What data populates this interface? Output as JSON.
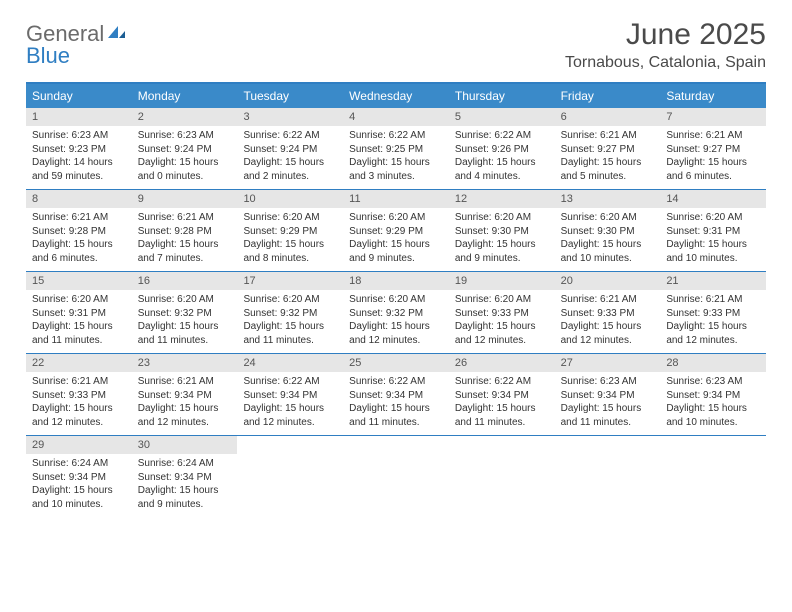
{
  "logo": {
    "general": "General",
    "blue": "Blue"
  },
  "title": "June 2025",
  "location": "Tornabous, Catalonia, Spain",
  "colors": {
    "header_bar": "#3a8ac9",
    "rule": "#2f7ec2",
    "daynum_bg": "#e6e6e6",
    "text_grey": "#4a4a4a",
    "body_text": "#333333",
    "logo_grey": "#6b6b6b",
    "logo_blue": "#2f7ec2"
  },
  "day_names": [
    "Sunday",
    "Monday",
    "Tuesday",
    "Wednesday",
    "Thursday",
    "Friday",
    "Saturday"
  ],
  "weeks": [
    [
      {
        "n": "1",
        "sr": "Sunrise: 6:23 AM",
        "ss": "Sunset: 9:23 PM",
        "dl": "Daylight: 14 hours and 59 minutes."
      },
      {
        "n": "2",
        "sr": "Sunrise: 6:23 AM",
        "ss": "Sunset: 9:24 PM",
        "dl": "Daylight: 15 hours and 0 minutes."
      },
      {
        "n": "3",
        "sr": "Sunrise: 6:22 AM",
        "ss": "Sunset: 9:24 PM",
        "dl": "Daylight: 15 hours and 2 minutes."
      },
      {
        "n": "4",
        "sr": "Sunrise: 6:22 AM",
        "ss": "Sunset: 9:25 PM",
        "dl": "Daylight: 15 hours and 3 minutes."
      },
      {
        "n": "5",
        "sr": "Sunrise: 6:22 AM",
        "ss": "Sunset: 9:26 PM",
        "dl": "Daylight: 15 hours and 4 minutes."
      },
      {
        "n": "6",
        "sr": "Sunrise: 6:21 AM",
        "ss": "Sunset: 9:27 PM",
        "dl": "Daylight: 15 hours and 5 minutes."
      },
      {
        "n": "7",
        "sr": "Sunrise: 6:21 AM",
        "ss": "Sunset: 9:27 PM",
        "dl": "Daylight: 15 hours and 6 minutes."
      }
    ],
    [
      {
        "n": "8",
        "sr": "Sunrise: 6:21 AM",
        "ss": "Sunset: 9:28 PM",
        "dl": "Daylight: 15 hours and 6 minutes."
      },
      {
        "n": "9",
        "sr": "Sunrise: 6:21 AM",
        "ss": "Sunset: 9:28 PM",
        "dl": "Daylight: 15 hours and 7 minutes."
      },
      {
        "n": "10",
        "sr": "Sunrise: 6:20 AM",
        "ss": "Sunset: 9:29 PM",
        "dl": "Daylight: 15 hours and 8 minutes."
      },
      {
        "n": "11",
        "sr": "Sunrise: 6:20 AM",
        "ss": "Sunset: 9:29 PM",
        "dl": "Daylight: 15 hours and 9 minutes."
      },
      {
        "n": "12",
        "sr": "Sunrise: 6:20 AM",
        "ss": "Sunset: 9:30 PM",
        "dl": "Daylight: 15 hours and 9 minutes."
      },
      {
        "n": "13",
        "sr": "Sunrise: 6:20 AM",
        "ss": "Sunset: 9:30 PM",
        "dl": "Daylight: 15 hours and 10 minutes."
      },
      {
        "n": "14",
        "sr": "Sunrise: 6:20 AM",
        "ss": "Sunset: 9:31 PM",
        "dl": "Daylight: 15 hours and 10 minutes."
      }
    ],
    [
      {
        "n": "15",
        "sr": "Sunrise: 6:20 AM",
        "ss": "Sunset: 9:31 PM",
        "dl": "Daylight: 15 hours and 11 minutes."
      },
      {
        "n": "16",
        "sr": "Sunrise: 6:20 AM",
        "ss": "Sunset: 9:32 PM",
        "dl": "Daylight: 15 hours and 11 minutes."
      },
      {
        "n": "17",
        "sr": "Sunrise: 6:20 AM",
        "ss": "Sunset: 9:32 PM",
        "dl": "Daylight: 15 hours and 11 minutes."
      },
      {
        "n": "18",
        "sr": "Sunrise: 6:20 AM",
        "ss": "Sunset: 9:32 PM",
        "dl": "Daylight: 15 hours and 12 minutes."
      },
      {
        "n": "19",
        "sr": "Sunrise: 6:20 AM",
        "ss": "Sunset: 9:33 PM",
        "dl": "Daylight: 15 hours and 12 minutes."
      },
      {
        "n": "20",
        "sr": "Sunrise: 6:21 AM",
        "ss": "Sunset: 9:33 PM",
        "dl": "Daylight: 15 hours and 12 minutes."
      },
      {
        "n": "21",
        "sr": "Sunrise: 6:21 AM",
        "ss": "Sunset: 9:33 PM",
        "dl": "Daylight: 15 hours and 12 minutes."
      }
    ],
    [
      {
        "n": "22",
        "sr": "Sunrise: 6:21 AM",
        "ss": "Sunset: 9:33 PM",
        "dl": "Daylight: 15 hours and 12 minutes."
      },
      {
        "n": "23",
        "sr": "Sunrise: 6:21 AM",
        "ss": "Sunset: 9:34 PM",
        "dl": "Daylight: 15 hours and 12 minutes."
      },
      {
        "n": "24",
        "sr": "Sunrise: 6:22 AM",
        "ss": "Sunset: 9:34 PM",
        "dl": "Daylight: 15 hours and 12 minutes."
      },
      {
        "n": "25",
        "sr": "Sunrise: 6:22 AM",
        "ss": "Sunset: 9:34 PM",
        "dl": "Daylight: 15 hours and 11 minutes."
      },
      {
        "n": "26",
        "sr": "Sunrise: 6:22 AM",
        "ss": "Sunset: 9:34 PM",
        "dl": "Daylight: 15 hours and 11 minutes."
      },
      {
        "n": "27",
        "sr": "Sunrise: 6:23 AM",
        "ss": "Sunset: 9:34 PM",
        "dl": "Daylight: 15 hours and 11 minutes."
      },
      {
        "n": "28",
        "sr": "Sunrise: 6:23 AM",
        "ss": "Sunset: 9:34 PM",
        "dl": "Daylight: 15 hours and 10 minutes."
      }
    ],
    [
      {
        "n": "29",
        "sr": "Sunrise: 6:24 AM",
        "ss": "Sunset: 9:34 PM",
        "dl": "Daylight: 15 hours and 10 minutes."
      },
      {
        "n": "30",
        "sr": "Sunrise: 6:24 AM",
        "ss": "Sunset: 9:34 PM",
        "dl": "Daylight: 15 hours and 9 minutes."
      },
      null,
      null,
      null,
      null,
      null
    ]
  ]
}
